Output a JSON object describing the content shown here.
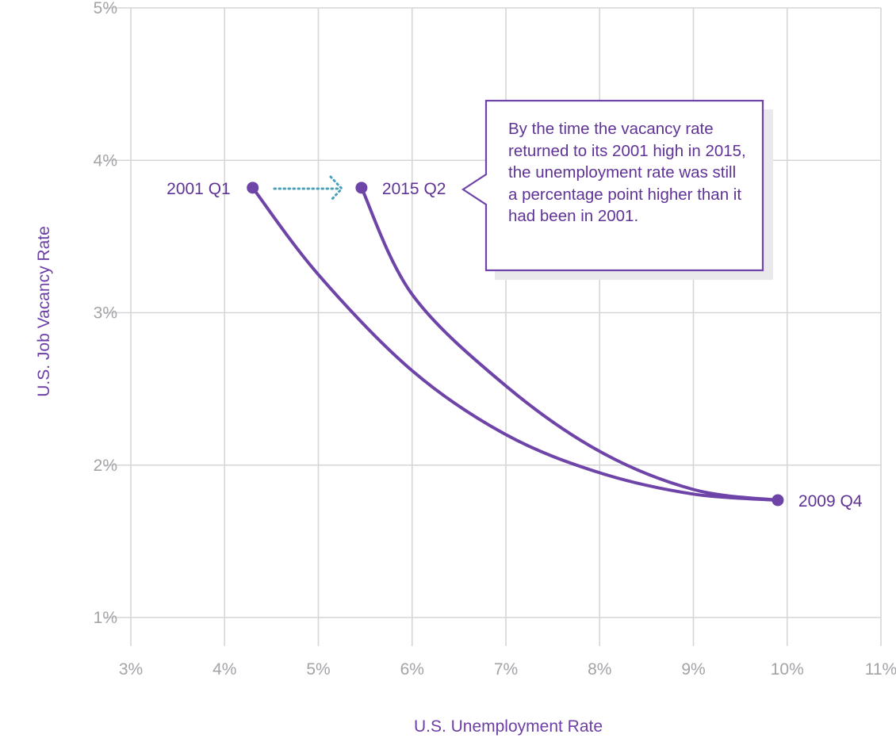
{
  "chart_data": {
    "type": "line",
    "xlabel": "U.S. Unemployment Rate",
    "ylabel": "U.S. Job Vacancy Rate",
    "xlim": [
      3,
      11
    ],
    "ylim": [
      1,
      5
    ],
    "x_ticks": [
      "3%",
      "4%",
      "5%",
      "6%",
      "7%",
      "8%",
      "9%",
      "10%",
      "11%"
    ],
    "y_ticks": [
      "1%",
      "2%",
      "3%",
      "4%",
      "5%"
    ],
    "grid": true,
    "series": [
      {
        "values": [
          {
            "x": 4.3,
            "y": 3.82
          },
          {
            "x": 5.0,
            "y": 3.25
          },
          {
            "x": 6.0,
            "y": 2.62
          },
          {
            "x": 7.0,
            "y": 2.2
          },
          {
            "x": 8.0,
            "y": 1.95
          },
          {
            "x": 9.0,
            "y": 1.81
          },
          {
            "x": 9.9,
            "y": 1.77
          }
        ]
      },
      {
        "values": [
          {
            "x": 5.46,
            "y": 3.82
          },
          {
            "x": 6.0,
            "y": 3.12
          },
          {
            "x": 7.0,
            "y": 2.52
          },
          {
            "x": 8.0,
            "y": 2.09
          },
          {
            "x": 9.0,
            "y": 1.84
          },
          {
            "x": 9.9,
            "y": 1.77
          }
        ]
      }
    ],
    "points": [
      {
        "label": "2001 Q1",
        "x": 4.3,
        "y": 3.82
      },
      {
        "label": "2015 Q2",
        "x": 5.46,
        "y": 3.82
      },
      {
        "label": "2009 Q4",
        "x": 9.9,
        "y": 1.77
      }
    ],
    "annotation": "By the time the vacancy rate returned to its 2001 high in 2015, the unemployment rate was still a percentage point higher than it had been in 2001.",
    "colors": {
      "line": "#6e44a8",
      "point": "#6e44a8",
      "arrow": "#4aa0b8",
      "grid": "#d6d6d9",
      "tick_text": "#a3a3a8",
      "label_text": "#5f3396"
    }
  }
}
